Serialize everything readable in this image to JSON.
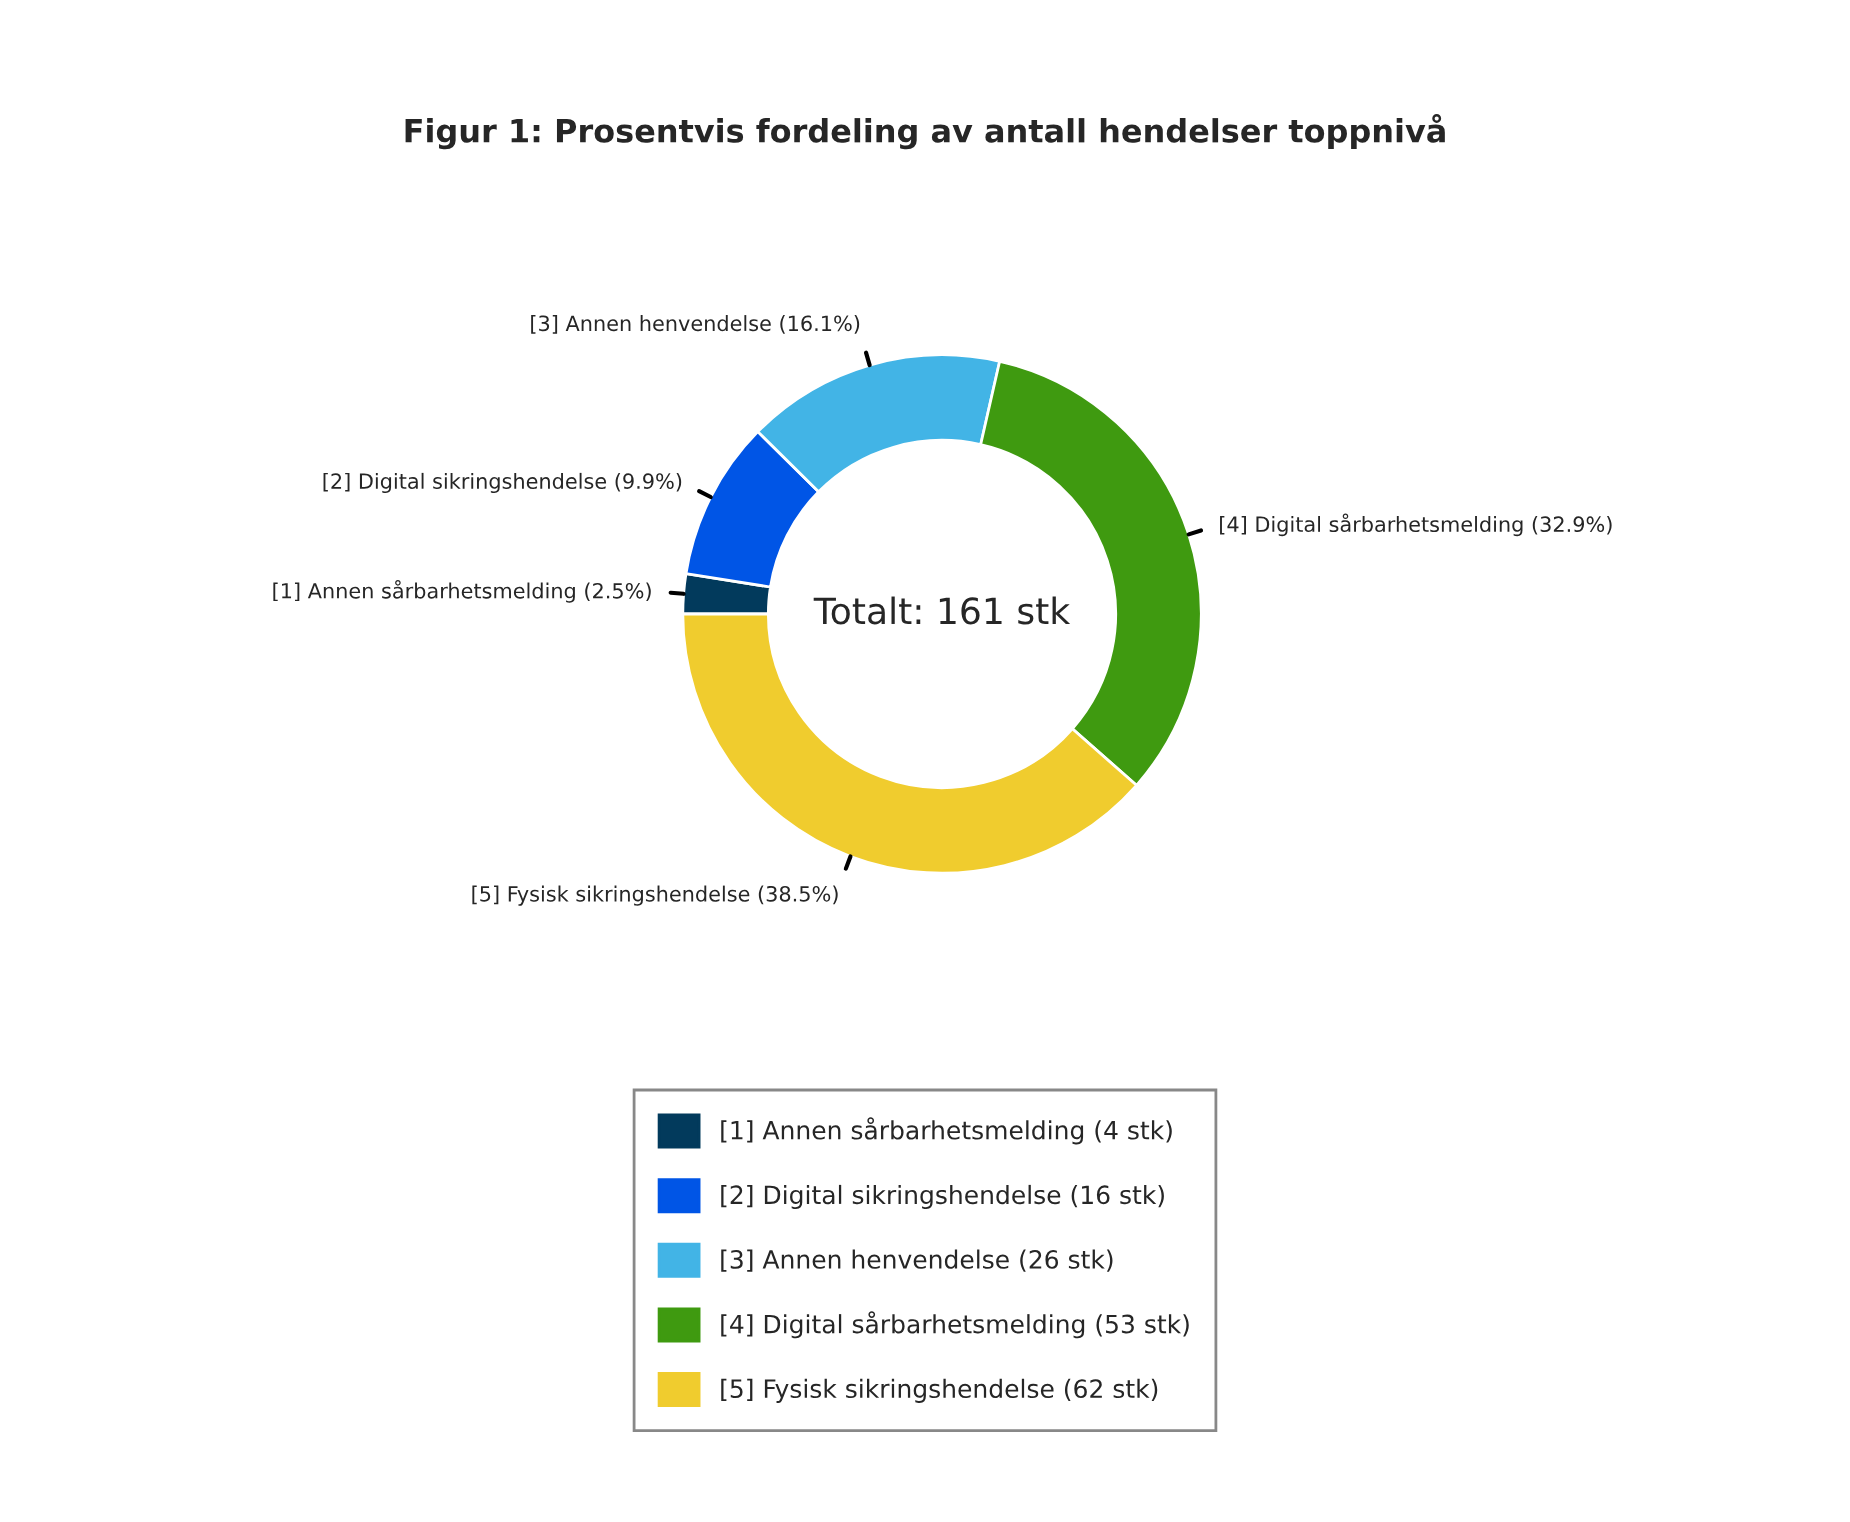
{
  "chart_data": {
    "type": "donut",
    "title": "Figur 1: Prosentvis fordeling av antall hendelser toppnivå",
    "categories": [
      "[1] Annen sårbarhetsmelding (4 stk)",
      "[2] Digital sikringshendelse (16 stk)",
      "[3] Annen henvendelse (26 stk)",
      "[4] Digital sårbarhetsmelding (53 stk)",
      "[5] Fysisk sikringshendelse (62 stk)"
    ],
    "values": [
      4,
      16,
      26,
      53,
      62
    ],
    "colors": [
      "#023a5c",
      "#0055e6",
      "#42b4e6",
      "#3f9a10",
      "#f0cc2e"
    ],
    "annotations": [
      "[1] Annen sårbarhetsmelding (2.5%)",
      "[2] Digital sikringshendelse (9.9%)",
      "[3] Annen henvendelse (16.1%)",
      "[4] Digital sårbarhetsmelding (32.9%)",
      "[5] Fysisk sikringshendelse (38.5%)",
      "Totalt: 161 stk"
    ],
    "legend": "bottom"
  }
}
